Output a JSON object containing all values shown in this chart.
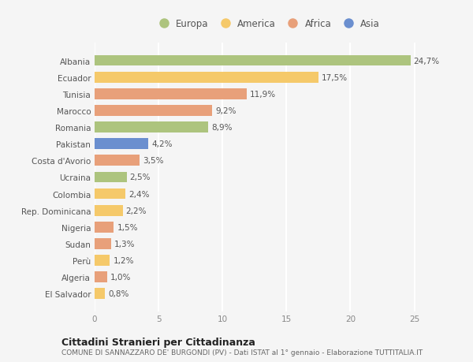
{
  "categories": [
    "Albania",
    "Ecuador",
    "Tunisia",
    "Marocco",
    "Romania",
    "Pakistan",
    "Costa d'Avorio",
    "Ucraina",
    "Colombia",
    "Rep. Dominicana",
    "Nigeria",
    "Sudan",
    "Perù",
    "Algeria",
    "El Salvador"
  ],
  "values": [
    24.7,
    17.5,
    11.9,
    9.2,
    8.9,
    4.2,
    3.5,
    2.5,
    2.4,
    2.2,
    1.5,
    1.3,
    1.2,
    1.0,
    0.8
  ],
  "labels": [
    "24,7%",
    "17,5%",
    "11,9%",
    "9,2%",
    "8,9%",
    "4,2%",
    "3,5%",
    "2,5%",
    "2,4%",
    "2,2%",
    "1,5%",
    "1,3%",
    "1,2%",
    "1,0%",
    "0,8%"
  ],
  "colors": [
    "#adc47e",
    "#f5c96a",
    "#e8a07a",
    "#e8a07a",
    "#adc47e",
    "#6b8fcf",
    "#e8a07a",
    "#adc47e",
    "#f5c96a",
    "#f5c96a",
    "#e8a07a",
    "#e8a07a",
    "#f5c96a",
    "#e8a07a",
    "#f5c96a"
  ],
  "legend_labels": [
    "Europa",
    "America",
    "Africa",
    "Asia"
  ],
  "legend_colors": [
    "#adc47e",
    "#f5c96a",
    "#e8a07a",
    "#6b8fcf"
  ],
  "xlim": [
    0,
    27
  ],
  "xticks": [
    0,
    5,
    10,
    15,
    20,
    25
  ],
  "title": "Cittadini Stranieri per Cittadinanza",
  "subtitle": "COMUNE DI SANNAZZARO DE' BURGONDI (PV) - Dati ISTAT al 1° gennaio - Elaborazione TUTTITALIA.IT",
  "bg_color": "#f5f5f5",
  "bar_height": 0.65,
  "grid_color": "#ffffff",
  "label_fontsize": 7.5,
  "tick_fontsize": 7.5,
  "title_fontsize": 9,
  "subtitle_fontsize": 6.5
}
